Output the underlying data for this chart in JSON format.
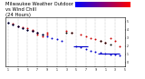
{
  "title": "Milwaukee Weather Outdoor Temperature vs Wind Chill (24 Hours)",
  "title_fontsize": 3.8,
  "bg_color": "#ffffff",
  "plot_bg": "#ffffff",
  "grid_color": "#888888",
  "temp_color": "#cc0000",
  "chill_color": "#0000cc",
  "black_color": "#000000",
  "legend_bar_left": "#0000ff",
  "legend_bar_right": "#ff0000",
  "temp_data": [
    [
      2,
      47
    ],
    [
      3,
      44
    ],
    [
      4,
      43
    ],
    [
      5,
      42
    ],
    [
      6,
      40
    ],
    [
      6,
      38
    ],
    [
      7,
      36
    ],
    [
      7,
      34
    ],
    [
      8,
      32
    ],
    [
      9,
      36
    ],
    [
      9,
      34
    ],
    [
      13,
      38
    ],
    [
      14,
      36
    ],
    [
      16,
      34
    ],
    [
      17,
      32
    ],
    [
      18,
      30
    ],
    [
      19,
      28
    ],
    [
      20,
      26
    ],
    [
      21,
      24
    ],
    [
      22,
      30
    ],
    [
      23,
      26
    ],
    [
      24,
      20
    ]
  ],
  "chill_data": [
    [
      1,
      48
    ],
    [
      2,
      46
    ],
    [
      3,
      44
    ],
    [
      4,
      42
    ],
    [
      5,
      40
    ],
    [
      6,
      38
    ],
    [
      7,
      36
    ],
    [
      8,
      34
    ],
    [
      9,
      32
    ],
    [
      10,
      30
    ],
    [
      11,
      28
    ],
    [
      12,
      26
    ],
    [
      15,
      20
    ],
    [
      16,
      18
    ],
    [
      17,
      16
    ],
    [
      18,
      14
    ],
    [
      19,
      13
    ],
    [
      20,
      12
    ],
    [
      21,
      11
    ],
    [
      22,
      10
    ],
    [
      23,
      9
    ],
    [
      24,
      8
    ]
  ],
  "chill_lines": [
    [
      14.5,
      17.5,
      20
    ],
    [
      19.5,
      24,
      11
    ]
  ],
  "black_data": [
    [
      1,
      48
    ],
    [
      2,
      46
    ],
    [
      3,
      44
    ],
    [
      4,
      42
    ],
    [
      5,
      40
    ],
    [
      6,
      38
    ],
    [
      7,
      36
    ],
    [
      8,
      34
    ],
    [
      13,
      36
    ],
    [
      14,
      36
    ],
    [
      20,
      26
    ],
    [
      21,
      24
    ],
    [
      22,
      22
    ]
  ],
  "ylim": [
    -5,
    55
  ],
  "xlim": [
    0.5,
    25
  ],
  "ytick_vals": [
    0,
    10,
    20,
    30,
    40,
    50
  ],
  "ytick_labels": [
    "0",
    "1",
    "2",
    "3",
    "4",
    "5"
  ],
  "xtick_vals": [
    1,
    3,
    5,
    7,
    9,
    11,
    13,
    15,
    17,
    19,
    21,
    23,
    25
  ],
  "xtick_labels": [
    "1",
    "3",
    "5",
    "7",
    "9",
    "1",
    "3",
    "5",
    "7",
    "9",
    "1",
    "3",
    "5"
  ],
  "marker_size": 2.0,
  "line_width": 0.8
}
